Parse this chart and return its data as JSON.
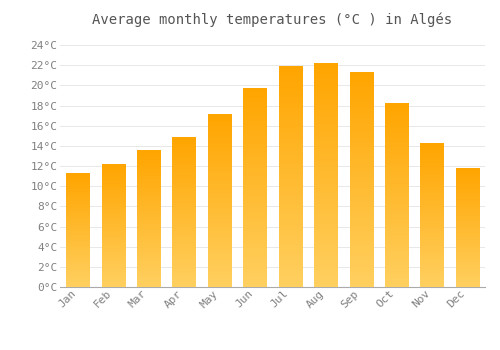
{
  "title": "Average monthly temperatures (°C ) in Algés",
  "months": [
    "Jan",
    "Feb",
    "Mar",
    "Apr",
    "May",
    "Jun",
    "Jul",
    "Aug",
    "Sep",
    "Oct",
    "Nov",
    "Dec"
  ],
  "values": [
    11.3,
    12.2,
    13.5,
    14.8,
    17.1,
    19.7,
    21.9,
    22.2,
    21.3,
    18.2,
    14.2,
    11.8
  ],
  "bar_color": "#FFA500",
  "bar_color_light": "#FFD060",
  "background_color": "#FFFFFF",
  "grid_color": "#E8E8E8",
  "text_color": "#808080",
  "ylim": [
    0,
    25
  ],
  "ytick_step": 2,
  "title_fontsize": 10,
  "tick_fontsize": 8,
  "bar_width": 0.65
}
